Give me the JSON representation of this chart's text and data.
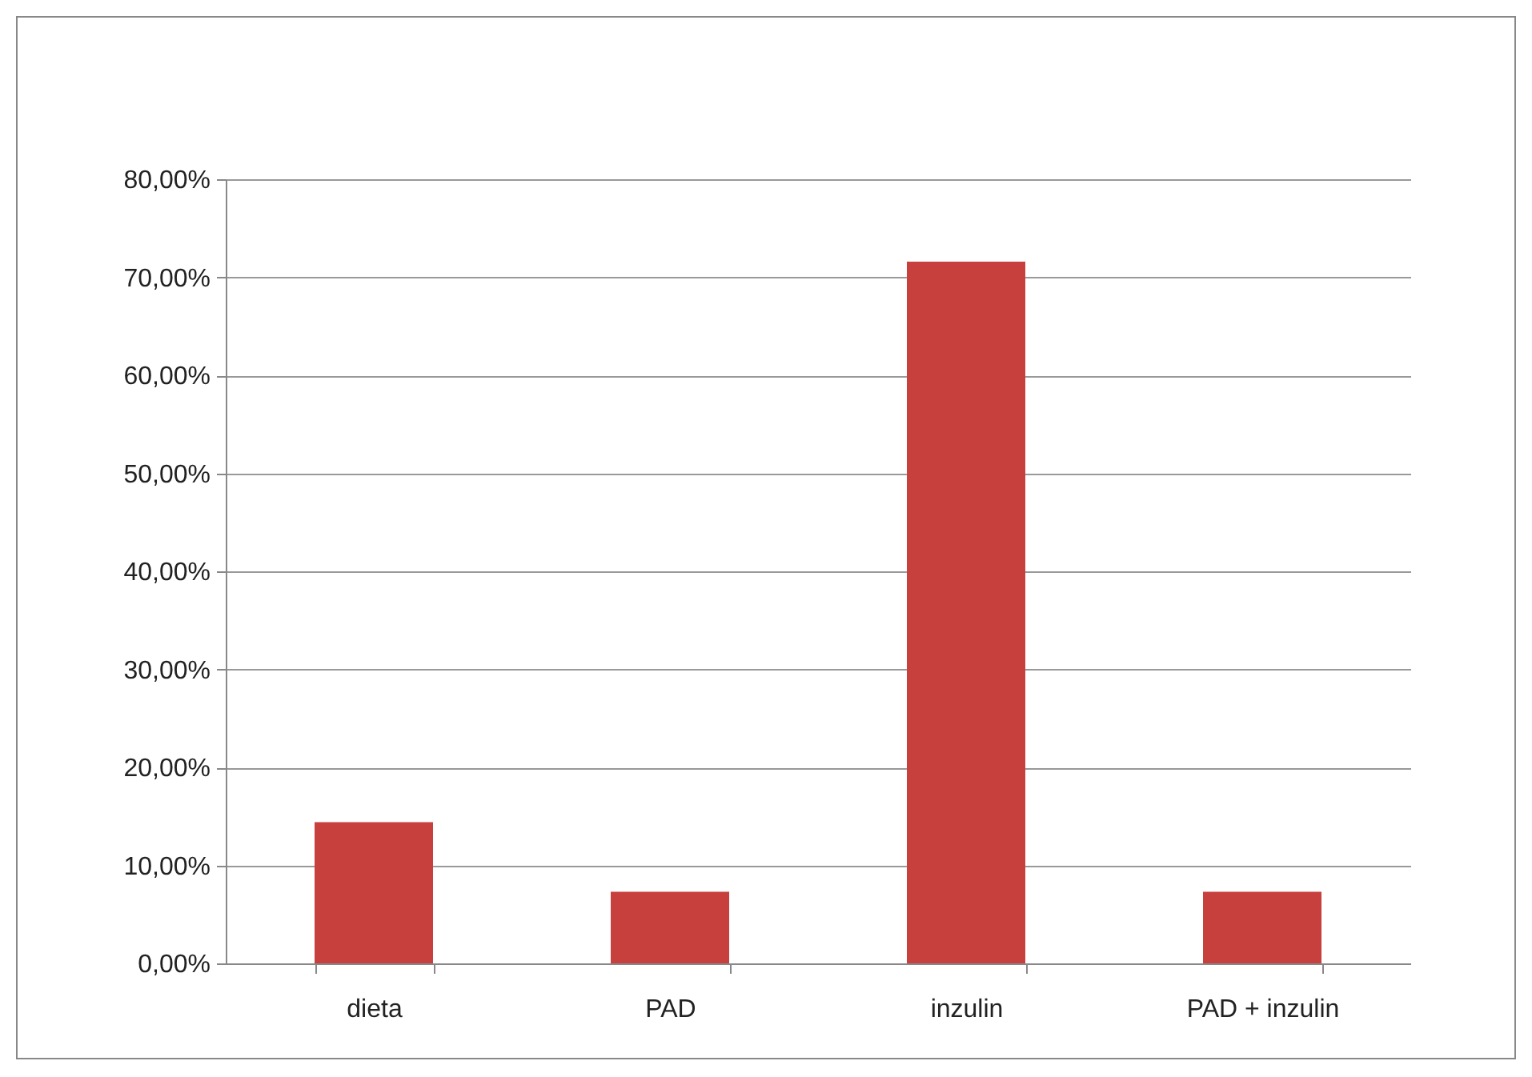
{
  "chart_data": {
    "type": "bar",
    "categories": [
      "dieta",
      "PAD",
      "inzulin",
      "PAD + inzulin"
    ],
    "values": [
      14.4,
      7.3,
      71.6,
      7.3
    ],
    "color": "#c8403d",
    "ylim": [
      0,
      80
    ],
    "yticks": [
      {
        "value": 0,
        "label": "0,00%"
      },
      {
        "value": 10,
        "label": "10,00%"
      },
      {
        "value": 20,
        "label": "20,00%"
      },
      {
        "value": 30,
        "label": "30,00%"
      },
      {
        "value": 40,
        "label": "40,00%"
      },
      {
        "value": 50,
        "label": "50,00%"
      },
      {
        "value": 60,
        "label": "60,00%"
      },
      {
        "value": 70,
        "label": "70,00%"
      },
      {
        "value": 80,
        "label": "80,00%"
      }
    ],
    "grid": "y"
  }
}
